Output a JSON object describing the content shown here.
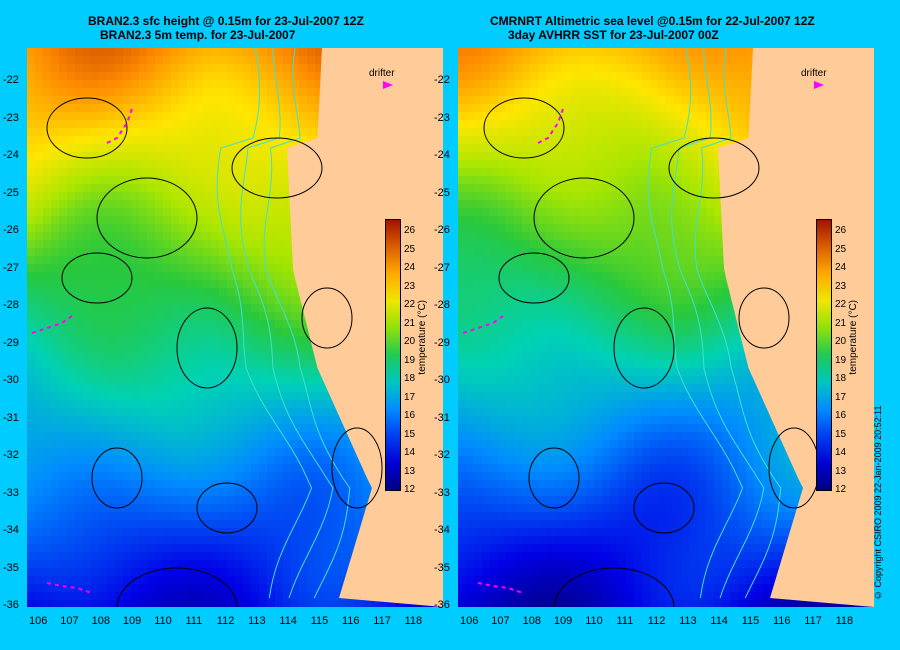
{
  "left_panel": {
    "title_line1": "BRAN2.3 sfc height @ 0.15m for 23-Jul-2007 12Z",
    "title_line2": "BRAN2.3 5m temp. for 23-Jul-2007",
    "drifter_label": "drifter"
  },
  "right_panel": {
    "title_line1": "CMRNRT Altimetric sea level  @0.15m  for 22-Jul-2007 12Z",
    "title_line2": "3day AVHRR SST for 23-Jul-2007 00Z",
    "drifter_label": "drifter"
  },
  "lon_ticks": [
    "106",
    "107",
    "108",
    "109",
    "110",
    "111",
    "112",
    "113",
    "114",
    "115",
    "116",
    "117",
    "118"
  ],
  "lat_ticks": [
    "-22",
    "-23",
    "-24",
    "-25",
    "-26",
    "-27",
    "-28",
    "-29",
    "-30",
    "-31",
    "-32",
    "-33",
    "-34",
    "-35",
    "-36"
  ],
  "colorbar": {
    "label": "temperature (°C)",
    "ticks": [
      "26",
      "25",
      "24",
      "23",
      "22",
      "21",
      "20",
      "19",
      "18",
      "17",
      "16",
      "15",
      "14",
      "13",
      "12"
    ],
    "range": [
      12,
      26.5
    ]
  },
  "copyright": "© Copyright CSIRO 2009   22-Jan-2009 20:52:11",
  "colors": {
    "background": "#00ccff",
    "land": "#ffcc99",
    "contour": "#000000",
    "bathymetry": "#40e0d0",
    "drifter": "#ff00ff"
  }
}
